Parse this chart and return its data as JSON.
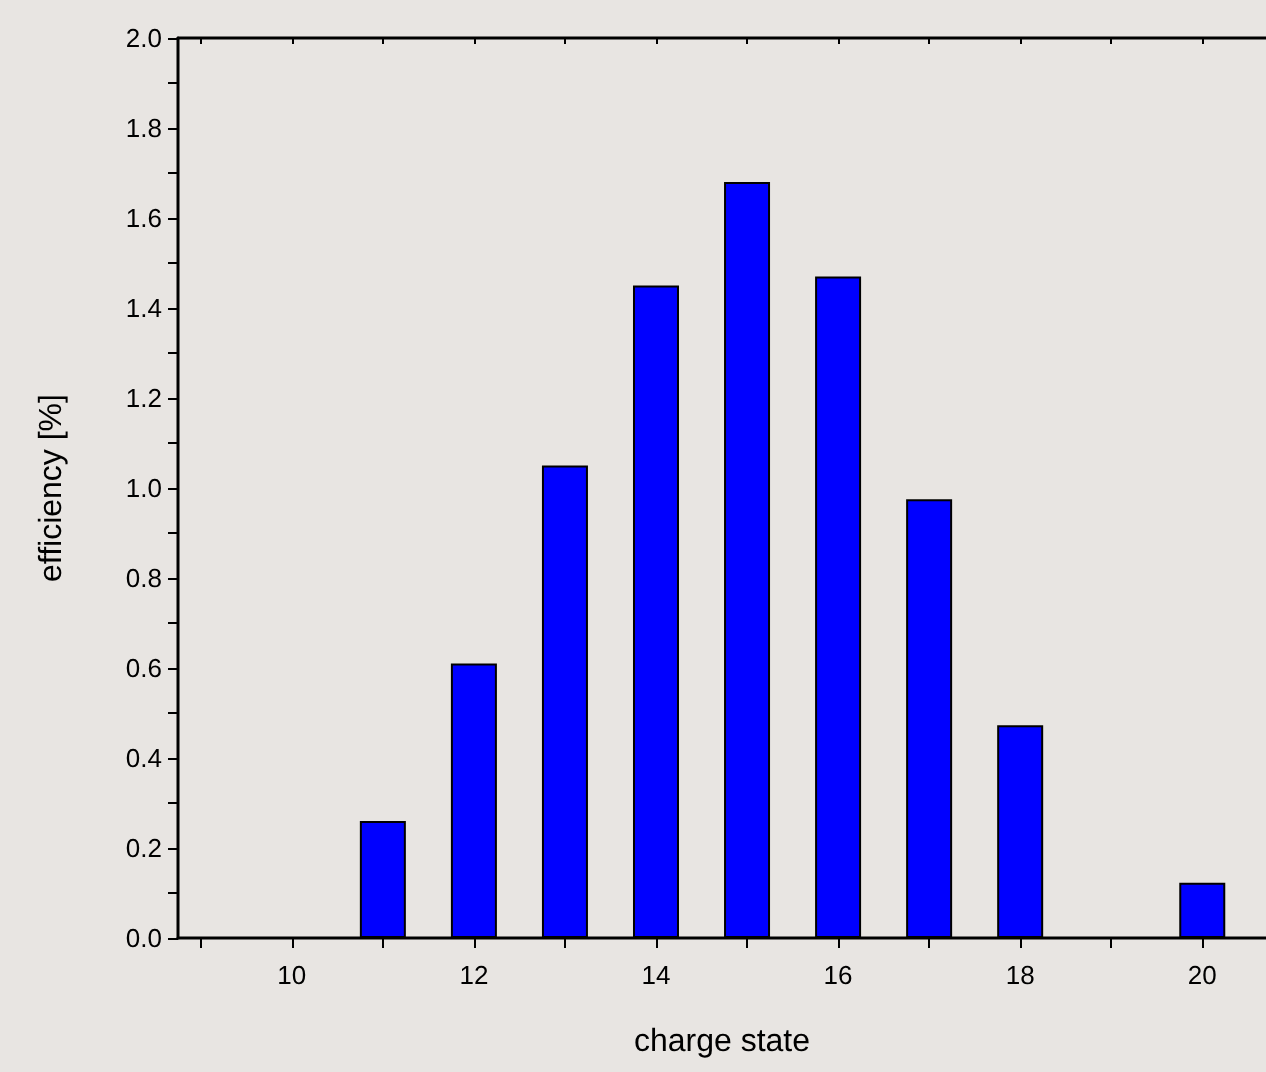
{
  "chart_data": {
    "type": "bar",
    "xlabel": "charge state",
    "ylabel": "efficiency [%]",
    "x": [
      11,
      12,
      13,
      14,
      15,
      16,
      17,
      18,
      20
    ],
    "values": [
      0.26,
      0.61,
      1.05,
      1.45,
      1.68,
      1.47,
      0.975,
      0.473,
      0.123
    ],
    "color": "#0000ff",
    "xlim": [
      8.75,
      20.7
    ],
    "xticks": [
      {
        "value": 9,
        "label": null
      },
      10,
      {
        "value": 11,
        "label": null
      },
      12,
      {
        "value": 13,
        "label": null
      },
      14,
      {
        "value": 15,
        "label": null
      },
      16,
      {
        "value": 17,
        "label": null
      },
      18,
      {
        "value": 19,
        "label": null
      },
      20
    ],
    "ylim": [
      0,
      2
    ],
    "yticks": [
      {
        "value": 0,
        "label": "0.0"
      },
      {
        "value": 0.1,
        "label": null
      },
      {
        "value": 0.2,
        "label": "0.2"
      },
      {
        "value": 0.3,
        "label": null
      },
      {
        "value": 0.4,
        "label": "0.4"
      },
      {
        "value": 0.5,
        "label": null
      },
      {
        "value": 0.6,
        "label": "0.6"
      },
      {
        "value": 0.7,
        "label": null
      },
      {
        "value": 0.8,
        "label": "0.8"
      },
      {
        "value": 0.9,
        "label": null
      },
      {
        "value": 1,
        "label": "1.0"
      },
      {
        "value": 1.1,
        "label": null
      },
      {
        "value": 1.2,
        "label": "1.2"
      },
      {
        "value": 1.3,
        "label": null
      },
      {
        "value": 1.4,
        "label": "1.4"
      },
      {
        "value": 1.5,
        "label": null
      },
      {
        "value": 1.6,
        "label": "1.6"
      },
      {
        "value": 1.7,
        "label": null
      },
      {
        "value": 1.8,
        "label": "1.8"
      },
      {
        "value": 1.9,
        "label": null
      },
      {
        "value": 2,
        "label": "2.0"
      }
    ],
    "grid": false
  }
}
